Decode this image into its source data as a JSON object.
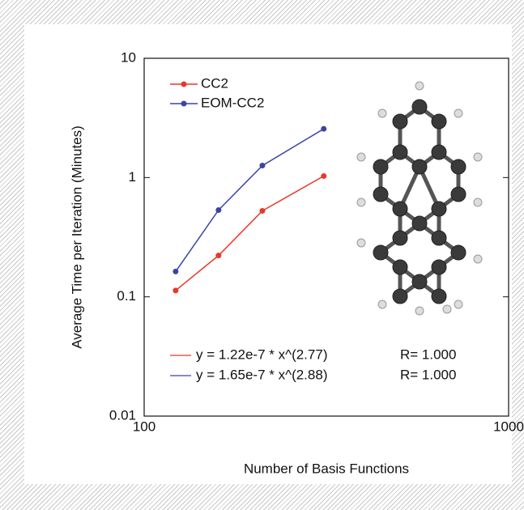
{
  "chart_data": {
    "type": "line",
    "x_label": "Number of Basis Functions",
    "y_label": "Average Time per Iteration (Minutes)",
    "x": [
      122,
      160,
      211,
      311
    ],
    "series": [
      {
        "name": "CC2",
        "color": "#e8382c",
        "values": [
          0.113,
          0.222,
          0.526,
          1.03
        ]
      },
      {
        "name": "EOM-CC2",
        "color": "#3b45a0",
        "values": [
          0.163,
          0.534,
          1.26,
          2.56
        ]
      }
    ],
    "xlim": [
      100,
      1000
    ],
    "xticks": [
      100,
      1000
    ],
    "ylim": [
      0.01,
      10
    ],
    "yticks": [
      0.01,
      0.1,
      1,
      10
    ],
    "xscale": "log",
    "yscale": "log",
    "legend": "upper left",
    "annotations": [
      {
        "fit": "y = 1.22e-7 * x^(2.77)",
        "r": "R= 1.000",
        "color": "#e8382c"
      },
      {
        "fit": "y = 1.65e-7 * x^(2.88)",
        "r": "R= 1.000",
        "color": "#3b45a0"
      }
    ]
  }
}
